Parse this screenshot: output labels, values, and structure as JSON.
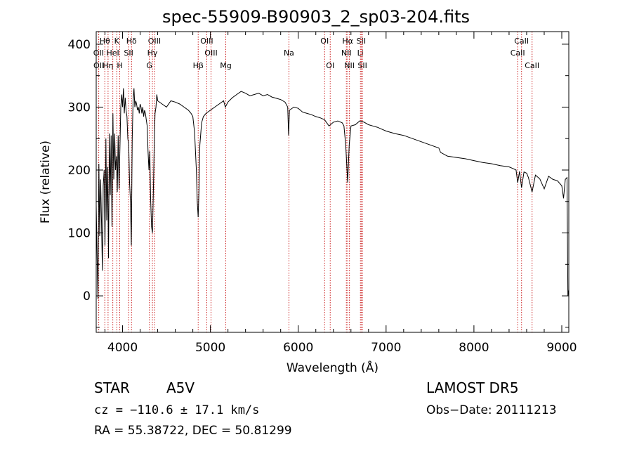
{
  "chart_data": {
    "type": "line",
    "title": "spec-55909-B90903_2_sp03-204.fits",
    "xlabel": "Wavelength (Å)",
    "ylabel": "Flux (relative)",
    "xlim": [
      3700,
      9080
    ],
    "ylim": [
      -58,
      420
    ],
    "xticks": [
      4000,
      5000,
      6000,
      7000,
      8000,
      9000
    ],
    "yticks": [
      0,
      100,
      200,
      300,
      400
    ],
    "grid": false,
    "series": [
      {
        "color": "#000000",
        "points": [
          [
            3700,
            145
          ],
          [
            3710,
            60
          ],
          [
            3720,
            -5
          ],
          [
            3730,
            210
          ],
          [
            3740,
            95
          ],
          [
            3750,
            185
          ],
          [
            3760,
            120
          ],
          [
            3770,
            40
          ],
          [
            3780,
            175
          ],
          [
            3790,
            200
          ],
          [
            3800,
            80
          ],
          [
            3810,
            250
          ],
          [
            3820,
            120
          ],
          [
            3830,
            205
          ],
          [
            3840,
            60
          ],
          [
            3850,
            258
          ],
          [
            3860,
            160
          ],
          [
            3870,
            255
          ],
          [
            3880,
            110
          ],
          [
            3890,
            290
          ],
          [
            3900,
            185
          ],
          [
            3910,
            258
          ],
          [
            3920,
            200
          ],
          [
            3930,
            222
          ],
          [
            3940,
            165
          ],
          [
            3950,
            255
          ],
          [
            3960,
            170
          ],
          [
            3970,
            235
          ],
          [
            3980,
            300
          ],
          [
            3990,
            320
          ],
          [
            4000,
            300
          ],
          [
            4010,
            330
          ],
          [
            4020,
            290
          ],
          [
            4030,
            315
          ],
          [
            4040,
            295
          ],
          [
            4050,
            285
          ],
          [
            4060,
            250
          ],
          [
            4070,
            240
          ],
          [
            4080,
            180
          ],
          [
            4090,
            150
          ],
          [
            4100,
            80
          ],
          [
            4110,
            250
          ],
          [
            4120,
            310
          ],
          [
            4130,
            330
          ],
          [
            4140,
            300
          ],
          [
            4150,
            310
          ],
          [
            4160,
            305
          ],
          [
            4170,
            295
          ],
          [
            4180,
            300
          ],
          [
            4190,
            290
          ],
          [
            4200,
            305
          ],
          [
            4210,
            300
          ],
          [
            4220,
            290
          ],
          [
            4230,
            300
          ],
          [
            4240,
            285
          ],
          [
            4250,
            295
          ],
          [
            4260,
            290
          ],
          [
            4270,
            280
          ],
          [
            4280,
            270
          ],
          [
            4290,
            230
          ],
          [
            4300,
            200
          ],
          [
            4310,
            230
          ],
          [
            4320,
            150
          ],
          [
            4330,
            110
          ],
          [
            4340,
            100
          ],
          [
            4350,
            160
          ],
          [
            4360,
            240
          ],
          [
            4370,
            290
          ],
          [
            4380,
            300
          ],
          [
            4390,
            320
          ],
          [
            4400,
            310
          ],
          [
            4450,
            305
          ],
          [
            4500,
            300
          ],
          [
            4550,
            310
          ],
          [
            4600,
            308
          ],
          [
            4650,
            305
          ],
          [
            4700,
            300
          ],
          [
            4750,
            295
          ],
          [
            4780,
            290
          ],
          [
            4800,
            285
          ],
          [
            4820,
            260
          ],
          [
            4840,
            200
          ],
          [
            4850,
            150
          ],
          [
            4861,
            125
          ],
          [
            4870,
            170
          ],
          [
            4880,
            240
          ],
          [
            4900,
            275
          ],
          [
            4920,
            285
          ],
          [
            4950,
            290
          ],
          [
            5000,
            295
          ],
          [
            5050,
            300
          ],
          [
            5100,
            305
          ],
          [
            5150,
            310
          ],
          [
            5170,
            300
          ],
          [
            5200,
            308
          ],
          [
            5250,
            315
          ],
          [
            5300,
            320
          ],
          [
            5350,
            325
          ],
          [
            5400,
            322
          ],
          [
            5450,
            318
          ],
          [
            5500,
            320
          ],
          [
            5550,
            322
          ],
          [
            5600,
            318
          ],
          [
            5650,
            320
          ],
          [
            5700,
            316
          ],
          [
            5750,
            314
          ],
          [
            5800,
            312
          ],
          [
            5850,
            308
          ],
          [
            5880,
            300
          ],
          [
            5890,
            255
          ],
          [
            5900,
            295
          ],
          [
            5950,
            300
          ],
          [
            6000,
            298
          ],
          [
            6050,
            292
          ],
          [
            6100,
            290
          ],
          [
            6150,
            288
          ],
          [
            6200,
            285
          ],
          [
            6250,
            283
          ],
          [
            6300,
            280
          ],
          [
            6350,
            270
          ],
          [
            6400,
            276
          ],
          [
            6450,
            278
          ],
          [
            6500,
            275
          ],
          [
            6520,
            270
          ],
          [
            6540,
            240
          ],
          [
            6563,
            180
          ],
          [
            6580,
            240
          ],
          [
            6600,
            270
          ],
          [
            6650,
            272
          ],
          [
            6700,
            278
          ],
          [
            6750,
            276
          ],
          [
            6800,
            272
          ],
          [
            6850,
            270
          ],
          [
            6900,
            268
          ],
          [
            6950,
            265
          ],
          [
            7000,
            262
          ],
          [
            7100,
            258
          ],
          [
            7200,
            255
          ],
          [
            7300,
            250
          ],
          [
            7400,
            245
          ],
          [
            7500,
            240
          ],
          [
            7600,
            235
          ],
          [
            7620,
            228
          ],
          [
            7700,
            222
          ],
          [
            7800,
            220
          ],
          [
            7900,
            218
          ],
          [
            8000,
            215
          ],
          [
            8100,
            212
          ],
          [
            8200,
            210
          ],
          [
            8300,
            207
          ],
          [
            8400,
            205
          ],
          [
            8450,
            202
          ],
          [
            8480,
            200
          ],
          [
            8498,
            180
          ],
          [
            8520,
            198
          ],
          [
            8542,
            172
          ],
          [
            8570,
            197
          ],
          [
            8600,
            195
          ],
          [
            8620,
            188
          ],
          [
            8662,
            165
          ],
          [
            8700,
            192
          ],
          [
            8750,
            186
          ],
          [
            8800,
            170
          ],
          [
            8850,
            190
          ],
          [
            8900,
            185
          ],
          [
            8950,
            183
          ],
          [
            9000,
            175
          ],
          [
            9020,
            155
          ],
          [
            9040,
            185
          ],
          [
            9060,
            188
          ],
          [
            9070,
            0
          ],
          [
            9080,
            10
          ]
        ]
      }
    ],
    "lines": [
      {
        "label": "Hθ",
        "x": 3798,
        "row": 1
      },
      {
        "label": "OII",
        "x": 3727,
        "row": 2
      },
      {
        "label": "OII",
        "x": 3729,
        "row": 3
      },
      {
        "label": "Hη",
        "x": 3835,
        "row": 3
      },
      {
        "label": "K",
        "x": 3934,
        "row": 1
      },
      {
        "label": "HeI",
        "x": 3889,
        "row": 2
      },
      {
        "label": "H",
        "x": 3968,
        "row": 3
      },
      {
        "label": "Hδ",
        "x": 4102,
        "row": 1
      },
      {
        "label": "SII",
        "x": 4069,
        "row": 2
      },
      {
        "label": "OIII",
        "x": 4363,
        "row": 1
      },
      {
        "label": "Hγ",
        "x": 4340,
        "row": 2
      },
      {
        "label": "G",
        "x": 4305,
        "row": 3
      },
      {
        "label": "OIII",
        "x": 4959,
        "row": 1
      },
      {
        "label": "OIII",
        "x": 5007,
        "row": 2
      },
      {
        "label": "Hβ",
        "x": 4861,
        "row": 3
      },
      {
        "label": "Mg",
        "x": 5175,
        "row": 3
      },
      {
        "label": "Na",
        "x": 5894,
        "row": 2
      },
      {
        "label": "OI",
        "x": 6300,
        "row": 1
      },
      {
        "label": "OI",
        "x": 6364,
        "row": 3
      },
      {
        "label": "Hα",
        "x": 6563,
        "row": 1
      },
      {
        "label": "NII",
        "x": 6548,
        "row": 2
      },
      {
        "label": "NII",
        "x": 6583,
        "row": 3
      },
      {
        "label": "SII",
        "x": 6717,
        "row": 1
      },
      {
        "label": "Li",
        "x": 6708,
        "row": 2
      },
      {
        "label": "SII",
        "x": 6731,
        "row": 3
      },
      {
        "label": "CaII",
        "x": 8542,
        "row": 1
      },
      {
        "label": "CaII",
        "x": 8498,
        "row": 2
      },
      {
        "label": "CaII",
        "x": 8662,
        "row": 3
      }
    ]
  },
  "info": {
    "object_class": "STAR",
    "subclass": "A5V",
    "survey": "LAMOST DR5",
    "cz": "cz = −110.6 ± 17.1 km/s",
    "obs_date": "Obs−Date: 20111213",
    "radec": "RA =  55.38722, DEC =  50.81299"
  }
}
